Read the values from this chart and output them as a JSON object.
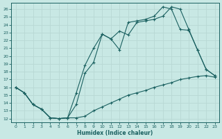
{
  "xlabel": "Humidex (Indice chaleur)",
  "bg_color": "#c8e8e4",
  "line_color": "#1a6060",
  "grid_color": "#b8d8d4",
  "xlim": [
    -0.5,
    23.5
  ],
  "ylim": [
    11.5,
    26.8
  ],
  "xticks": [
    0,
    1,
    2,
    3,
    4,
    5,
    6,
    7,
    8,
    9,
    10,
    11,
    12,
    13,
    14,
    15,
    16,
    17,
    18,
    19,
    20,
    21,
    22,
    23
  ],
  "yticks": [
    12,
    13,
    14,
    15,
    16,
    17,
    18,
    19,
    20,
    21,
    22,
    23,
    24,
    25,
    26
  ],
  "line1_x": [
    0,
    1,
    2,
    3,
    4,
    5,
    6,
    7,
    8,
    9,
    10,
    11,
    12,
    13,
    14,
    15,
    16,
    17,
    18,
    19,
    20,
    21,
    22,
    23
  ],
  "line1_y": [
    16.0,
    15.3,
    13.8,
    13.2,
    12.1,
    12.0,
    12.1,
    12.1,
    12.3,
    13.0,
    13.5,
    14.0,
    14.5,
    15.0,
    15.3,
    15.6,
    16.0,
    16.3,
    16.6,
    17.0,
    17.2,
    17.4,
    17.5,
    17.3
  ],
  "line2_x": [
    0,
    1,
    2,
    3,
    4,
    5,
    6,
    7,
    8,
    9,
    10,
    11,
    12,
    13,
    14,
    15,
    16,
    17,
    18,
    19,
    20,
    21,
    22,
    23
  ],
  "line2_y": [
    16.0,
    15.3,
    13.8,
    13.2,
    12.1,
    12.0,
    12.1,
    13.8,
    17.8,
    19.2,
    22.8,
    22.2,
    23.2,
    22.7,
    24.3,
    24.5,
    24.7,
    25.1,
    26.3,
    26.0,
    23.4,
    20.8,
    18.3,
    17.5
  ],
  "line3_x": [
    0,
    1,
    2,
    3,
    4,
    5,
    6,
    7,
    8,
    9,
    10,
    11,
    12,
    13,
    14,
    15,
    16,
    17,
    18,
    19,
    20,
    21,
    22,
    23
  ],
  "line3_y": [
    16.0,
    15.3,
    13.8,
    13.2,
    12.1,
    12.0,
    12.1,
    15.3,
    18.8,
    21.0,
    22.8,
    22.2,
    20.8,
    24.3,
    24.5,
    24.7,
    25.1,
    26.3,
    26.0,
    23.4,
    23.3,
    20.8,
    18.3,
    17.5
  ]
}
